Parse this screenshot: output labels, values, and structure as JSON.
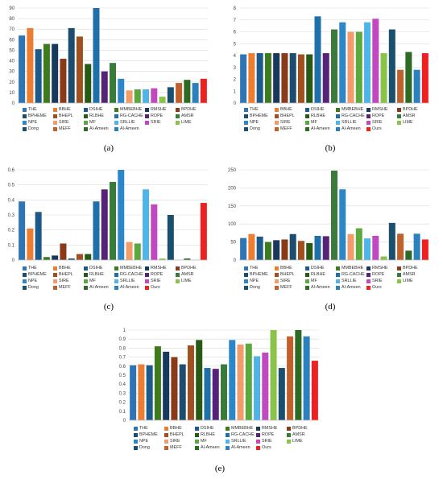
{
  "panel_labels": [
    "(a)",
    "(b)",
    "(c)",
    "(d)",
    "(e)"
  ],
  "method_colors": {
    "THE": "#2e75b6",
    "BBHE": "#ed7d31",
    "DSIHE": "#1b5a8a",
    "MMBEBHE": "#3e7a1e",
    "RMSHE": "#173a5c",
    "BPDHE": "#8a3a17",
    "BPHEME": "#1d4d6e",
    "BHEPL": "#a0501f",
    "RLBHE": "#285a16",
    "RG-CACHE": "#1f6fa8",
    "ROPE": "#572377",
    "AMSR": "#3a7a3a",
    "NPE": "#2b87c7",
    "SIRE": "#f29b6b",
    "MF": "#5aa83e",
    "SRLLIE": "#4fb4e8",
    "SRIE": "#c148c1",
    "LIME": "#8ac34a",
    "Dong": "#1a4f6e",
    "MEFF": "#c0602b",
    "Al-Ameen": "#2d6a24",
    "Al-Ameen2": "#2a81bd",
    "Ours": "#ee2020"
  },
  "legend_ab": {
    "items": [
      "THE",
      "BBHE",
      "DSIHE",
      "MMBEBHE",
      "RMSHE",
      "BPDHE",
      "BPHEME",
      "BHEPL",
      "RLBHE",
      "RG-CACHE",
      "ROPE",
      "AMSR",
      "NPE",
      "SIRE",
      "MF",
      "SRLLIE",
      "SRIE",
      "LIME",
      "Dong",
      "MEFF",
      "Al-Ameen",
      "Al-Ameen",
      "Ours"
    ],
    "keys": [
      "THE",
      "BBHE",
      "DSIHE",
      "MMBEBHE",
      "RMSHE",
      "BPDHE",
      "BPHEME",
      "BHEPL",
      "RLBHE",
      "RG-CACHE",
      "ROPE",
      "AMSR",
      "NPE",
      "SIRE",
      "MF",
      "SRLLIE",
      "SRIE",
      "LIME",
      "Dong",
      "MEFF",
      "Al-Ameen",
      "Al-Ameen2",
      "Ours"
    ]
  },
  "legend_a": {
    "items": [
      "THE",
      "BBHE",
      "DSIHE",
      "MMBEBHE",
      "RMSHE",
      "BPDHE",
      "BPHEME",
      "BHEPL",
      "RLBHE",
      "RG-CACHE",
      "ROPE",
      "AMSR",
      "NPE",
      "SIRE",
      "MF",
      "SRLLIE",
      "SRIE",
      "LIME",
      "Dong",
      "MEFF",
      "Al-Ameen",
      "Al-Ameen"
    ],
    "keys": [
      "THE",
      "BBHE",
      "DSIHE",
      "MMBEBHE",
      "RMSHE",
      "BPDHE",
      "BPHEME",
      "BHEPL",
      "RLBHE",
      "RG-CACHE",
      "ROPE",
      "AMSR",
      "NPE",
      "SIRE",
      "MF",
      "SRLLIE",
      "SRIE",
      "LIME",
      "Dong",
      "MEFF",
      "Al-Ameen",
      "Al-Ameen2"
    ]
  },
  "chart_data": [
    {
      "id": "a",
      "type": "bar",
      "ylim": [
        0,
        90
      ],
      "yticks": [
        0,
        10,
        20,
        30,
        40,
        50,
        60,
        70,
        80,
        90
      ],
      "categories": [
        "THE",
        "BBHE",
        "DSIHE",
        "MMBEBHE",
        "RMSHE",
        "BPDHE",
        "BPHEME",
        "BHEPL",
        "RLBHE",
        "RG-CACHE",
        "ROPE",
        "AMSR",
        "NPE",
        "SIRE",
        "MF",
        "SRLLIE",
        "SRIE",
        "LIME",
        "Dong",
        "MEFF",
        "Al-Ameen",
        "Al-Ameen2",
        "Ours"
      ],
      "values": [
        64,
        71,
        51,
        56,
        56,
        42,
        71,
        63,
        37,
        90,
        30,
        38,
        23,
        12,
        13,
        13,
        14,
        6,
        15,
        19,
        22,
        19,
        23
      ]
    },
    {
      "id": "b",
      "type": "bar",
      "ylim": [
        0,
        8
      ],
      "yticks": [
        0,
        1,
        2,
        3,
        4,
        5,
        6,
        7,
        8
      ],
      "categories": [
        "THE",
        "BBHE",
        "DSIHE",
        "MMBEBHE",
        "RMSHE",
        "BPDHE",
        "BPHEME",
        "BHEPL",
        "RLBHE",
        "RG-CACHE",
        "ROPE",
        "AMSR",
        "NPE",
        "SIRE",
        "MF",
        "SRLLIE",
        "SRIE",
        "LIME",
        "Dong",
        "MEFF",
        "Al-Ameen",
        "Al-Ameen2",
        "Ours"
      ],
      "values": [
        4.1,
        4.2,
        4.2,
        4.2,
        4.2,
        4.2,
        4.2,
        4.1,
        4.1,
        7.3,
        4.2,
        6.2,
        6.8,
        6.0,
        6.0,
        6.8,
        7.1,
        4.2,
        6.2,
        2.8,
        4.3,
        2.8,
        4.2
      ]
    },
    {
      "id": "c",
      "type": "bar",
      "ylim": [
        0,
        0.6
      ],
      "yticks": [
        0,
        0.1,
        0.2,
        0.3,
        0.4,
        0.5,
        0.6
      ],
      "categories": [
        "THE",
        "BBHE",
        "DSIHE",
        "MMBEBHE",
        "RMSHE",
        "BPDHE",
        "BPHEME",
        "BHEPL",
        "RLBHE",
        "RG-CACHE",
        "ROPE",
        "AMSR",
        "NPE",
        "SIRE",
        "MF",
        "SRLLIE",
        "SRIE",
        "LIME",
        "Dong",
        "MEFF",
        "Al-Ameen",
        "Al-Ameen2",
        "Ours"
      ],
      "values": [
        0.39,
        0.21,
        0.32,
        0.02,
        0.03,
        0.11,
        0.01,
        0.04,
        0.04,
        0.39,
        0.47,
        0.52,
        0.6,
        0.12,
        0.11,
        0.47,
        0.37,
        0.01,
        0.3,
        0.0,
        0.01,
        0.0,
        0.38
      ]
    },
    {
      "id": "d",
      "type": "bar",
      "ylim": [
        0,
        250
      ],
      "yticks": [
        0,
        50,
        100,
        150,
        200,
        250
      ],
      "categories": [
        "THE",
        "BBHE",
        "DSIHE",
        "MMBEBHE",
        "RMSHE",
        "BPDHE",
        "BPHEME",
        "BHEPL",
        "RLBHE",
        "RG-CACHE",
        "ROPE",
        "AMSR",
        "NPE",
        "SIRE",
        "MF",
        "SRLLIE",
        "SRIE",
        "LIME",
        "Dong",
        "MEFF",
        "Al-Ameen",
        "Al-Ameen2",
        "Ours"
      ],
      "values": [
        61,
        72,
        65,
        50,
        55,
        57,
        72,
        53,
        47,
        67,
        66,
        248,
        196,
        72,
        88,
        60,
        67,
        10,
        103,
        73,
        26,
        73,
        57
      ]
    },
    {
      "id": "e",
      "type": "bar",
      "ylim": [
        0,
        1
      ],
      "yticks": [
        0,
        0.1,
        0.2,
        0.3,
        0.4,
        0.5,
        0.6,
        0.7,
        0.8,
        0.9,
        1
      ],
      "categories": [
        "THE",
        "BBHE",
        "DSIHE",
        "MMBEBHE",
        "RMSHE",
        "BPDHE",
        "BPHEME",
        "BHEPL",
        "RLBHE",
        "RG-CACHE",
        "ROPE",
        "AMSR",
        "NPE",
        "SIRE",
        "MF",
        "SRLLIE",
        "SRIE",
        "LIME",
        "Dong",
        "MEFF",
        "Al-Ameen",
        "Al-Ameen2",
        "Ours"
      ],
      "values": [
        0.61,
        0.62,
        0.61,
        0.82,
        0.76,
        0.7,
        0.62,
        0.83,
        0.89,
        0.58,
        0.57,
        0.62,
        0.89,
        0.84,
        0.85,
        0.71,
        0.75,
        1.0,
        0.58,
        0.93,
        1.0,
        0.93,
        0.66
      ]
    }
  ]
}
